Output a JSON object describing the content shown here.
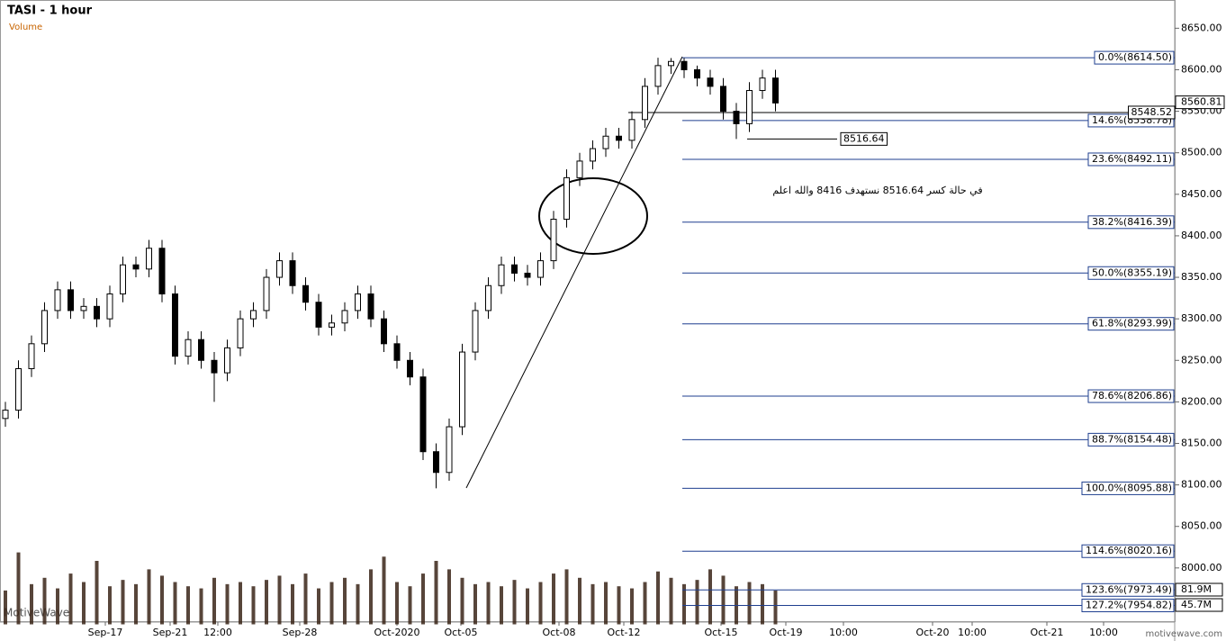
{
  "chart_data": {
    "type": "candlestick",
    "title": "TASI - 1 hour",
    "subtitle": "Volume",
    "open": [
      8180,
      8190,
      8240,
      8270,
      8310,
      8335,
      8310,
      8315,
      8300,
      8330,
      8365,
      8360,
      8385,
      8330,
      8255,
      8275,
      8250,
      8235,
      8265,
      8300,
      8310,
      8350,
      8370,
      8340,
      8320,
      8290,
      8295,
      8310,
      8330,
      8300,
      8270,
      8250,
      8230,
      8140,
      8115,
      8170,
      8260,
      8310,
      8340,
      8365,
      8355,
      8350,
      8370,
      8420,
      8470,
      8490,
      8505,
      8520,
      8515,
      8540,
      8580,
      8605,
      8610,
      8600,
      8590,
      8580,
      8550,
      8535,
      8575,
      8590
    ],
    "high": [
      8200,
      8250,
      8280,
      8320,
      8345,
      8345,
      8325,
      8325,
      8340,
      8375,
      8375,
      8395,
      8395,
      8340,
      8285,
      8285,
      8260,
      8275,
      8310,
      8320,
      8360,
      8380,
      8380,
      8350,
      8330,
      8305,
      8320,
      8340,
      8340,
      8310,
      8280,
      8260,
      8240,
      8150,
      8180,
      8270,
      8320,
      8350,
      8375,
      8375,
      8365,
      8380,
      8430,
      8480,
      8500,
      8515,
      8530,
      8530,
      8550,
      8590,
      8614.5,
      8614,
      8614,
      8605,
      8600,
      8590,
      8560,
      8585,
      8600,
      8600
    ],
    "low": [
      8170,
      8180,
      8230,
      8260,
      8300,
      8300,
      8300,
      8290,
      8290,
      8320,
      8350,
      8350,
      8320,
      8245,
      8245,
      8240,
      8200,
      8225,
      8255,
      8290,
      8300,
      8340,
      8330,
      8310,
      8280,
      8280,
      8285,
      8300,
      8290,
      8260,
      8240,
      8220,
      8130,
      8095.88,
      8105,
      8160,
      8250,
      8300,
      8330,
      8345,
      8340,
      8340,
      8360,
      8410,
      8460,
      8480,
      8495,
      8505,
      8505,
      8530,
      8570,
      8595,
      8590,
      8580,
      8570,
      8540,
      8516.64,
      8525,
      8565,
      8550
    ],
    "close": [
      8190,
      8240,
      8270,
      8310,
      8335,
      8310,
      8315,
      8300,
      8330,
      8365,
      8360,
      8385,
      8330,
      8255,
      8275,
      8250,
      8235,
      8265,
      8300,
      8310,
      8350,
      8370,
      8340,
      8320,
      8290,
      8295,
      8310,
      8330,
      8300,
      8270,
      8250,
      8230,
      8140,
      8115,
      8170,
      8260,
      8310,
      8340,
      8365,
      8355,
      8350,
      8370,
      8420,
      8470,
      8490,
      8505,
      8520,
      8515,
      8540,
      8580,
      8605,
      8610,
      8600,
      8590,
      8580,
      8550,
      8535,
      8575,
      8590,
      8560
    ],
    "volume": [
      80,
      170,
      95,
      110,
      85,
      120,
      100,
      150,
      90,
      105,
      95,
      130,
      115,
      100,
      90,
      85,
      110,
      95,
      100,
      90,
      105,
      115,
      95,
      120,
      85,
      100,
      110,
      95,
      130,
      160,
      100,
      90,
      120,
      150,
      130,
      110,
      95,
      100,
      90,
      105,
      85,
      100,
      120,
      130,
      110,
      95,
      100,
      90,
      85,
      100,
      125,
      110,
      95,
      105,
      130,
      115,
      90,
      100,
      95,
      80
    ],
    "ylim": [
      7912,
      8684
    ],
    "yticks": [
      {
        "value": 8000,
        "label": "8000.00"
      },
      {
        "value": 8050,
        "label": "8050.00"
      },
      {
        "value": 8100,
        "label": "8100.00"
      },
      {
        "value": 8150,
        "label": "8150.00"
      },
      {
        "value": 8200,
        "label": "8200.00"
      },
      {
        "value": 8250,
        "label": "8250.00"
      },
      {
        "value": 8300,
        "label": "8300.00"
      },
      {
        "value": 8350,
        "label": "8350.00"
      },
      {
        "value": 8400,
        "label": "8400.00"
      },
      {
        "value": 8450,
        "label": "8450.00"
      },
      {
        "value": 8500,
        "label": "8500.00"
      },
      {
        "value": 8550,
        "label": "8550.00"
      },
      {
        "value": 8600,
        "label": "8600.00"
      },
      {
        "value": 8650,
        "label": "8650.00"
      }
    ],
    "vlim": [
      0,
      200
    ],
    "vticks": [
      {
        "value": 81.9,
        "label": "81.9M"
      },
      {
        "value": 45.7,
        "label": "45.7M"
      }
    ],
    "xticks": [
      "Sep-17",
      "Sep-21",
      "12:00",
      "Sep-28",
      "Oct-2020",
      "Oct-05",
      "Oct-08",
      "Oct-12",
      "Oct-15",
      "Oct-19",
      "10:00",
      "Oct-20",
      "10:00",
      "Oct-21",
      "10:00"
    ],
    "fib_levels": [
      {
        "value": 8614.5,
        "label": "0.0%(8614.50)"
      },
      {
        "value": 8538.78,
        "label": "14.6%(8538.78)"
      },
      {
        "value": 8492.11,
        "label": "23.6%(8492.11)"
      },
      {
        "value": 8416.39,
        "label": "38.2%(8416.39)"
      },
      {
        "value": 8355.19,
        "label": "50.0%(8355.19)"
      },
      {
        "value": 8293.99,
        "label": "61.8%(8293.99)"
      },
      {
        "value": 8206.86,
        "label": "78.6%(8206.86)"
      },
      {
        "value": 8154.48,
        "label": "88.7%(8154.48)"
      },
      {
        "value": 8095.88,
        "label": "100.0%(8095.88)"
      },
      {
        "value": 8020.16,
        "label": "114.6%(8020.16)"
      },
      {
        "value": 7973.49,
        "label": "123.6%(7973.49)"
      },
      {
        "value": 7954.82,
        "label": "127.2%(7954.82)"
      }
    ],
    "support_levels": [
      {
        "value": 8548.52,
        "label": "8548.52"
      },
      {
        "value": 8516.64,
        "label": "8516.64"
      }
    ],
    "last_price": {
      "value": 8560.81,
      "label": "8560.81"
    },
    "annotation": "في حالة كسر 8516.64 نستهدف 8416 والله اعلم",
    "watermark": "MotiveWave",
    "site": "motivewave.com"
  }
}
